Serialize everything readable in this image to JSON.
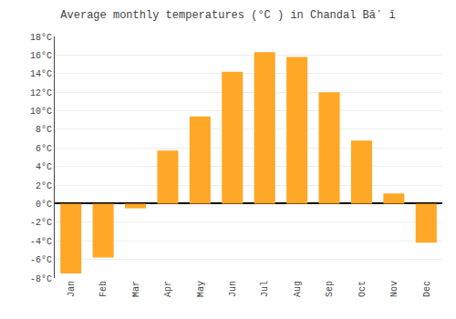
{
  "chart_data": {
    "type": "bar",
    "title": "Average monthly temperatures (°C ) in Chandal Bāʼ ī",
    "categories": [
      "Jan",
      "Feb",
      "Mar",
      "Apr",
      "May",
      "Jun",
      "Jul",
      "Aug",
      "Sep",
      "Oct",
      "Nov",
      "Dec"
    ],
    "values": [
      -7.5,
      -5.8,
      -0.5,
      5.7,
      9.4,
      14.2,
      16.3,
      15.8,
      12.0,
      6.8,
      1.1,
      -4.2
    ],
    "color": "#FFA726",
    "ylim": [
      -8,
      18
    ],
    "yticks": [
      {
        "value": -8,
        "label": "-8°C"
      },
      {
        "value": -6,
        "label": "-6°C"
      },
      {
        "value": -4,
        "label": "-4°C"
      },
      {
        "value": -2,
        "label": "-2°C"
      },
      {
        "value": 0,
        "label": "0°C"
      },
      {
        "value": 2,
        "label": "2°C"
      },
      {
        "value": 4,
        "label": "4°C"
      },
      {
        "value": 6,
        "label": "6°C"
      },
      {
        "value": 8,
        "label": "8°C"
      },
      {
        "value": 10,
        "label": "10°C"
      },
      {
        "value": 12,
        "label": "12°C"
      },
      {
        "value": 14,
        "label": "14°C"
      },
      {
        "value": 16,
        "label": "16°C"
      },
      {
        "value": 18,
        "label": "18°C"
      }
    ],
    "grid": true
  }
}
